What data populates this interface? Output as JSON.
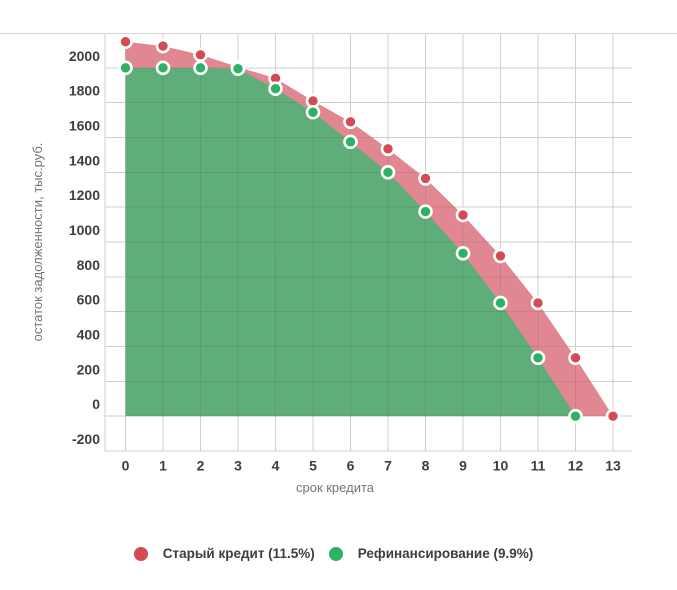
{
  "chart_data": {
    "type": "area",
    "title": "",
    "xlabel": "срок кредита",
    "ylabel": "остаток задолженности, тыс.руб.",
    "x": [
      0,
      1,
      2,
      3,
      4,
      5,
      6,
      7,
      8,
      9,
      10,
      11,
      12,
      13
    ],
    "series": [
      {
        "name": "Старый кредит (11.5%)",
        "values": [
          2150,
          2125,
          2075,
          2005,
          1940,
          1810,
          1690,
          1535,
          1365,
          1155,
          920,
          650,
          335,
          0
        ],
        "point_color": "#d24b55",
        "area_color": "#e18791"
      },
      {
        "name": "Рефинансирование (9.9%)",
        "values": [
          2000,
          2000,
          2000,
          1995,
          1880,
          1745,
          1575,
          1400,
          1175,
          935,
          650,
          335,
          0
        ],
        "point_color": "#2cb166",
        "area_color": "#5fad78"
      }
    ],
    "ylim": [
      -200,
      2200
    ],
    "y_tick_labels": [
      -200,
      0,
      200,
      400,
      600,
      800,
      1000,
      1200,
      1400,
      1600,
      1800,
      2000
    ],
    "x_tick_labels": [
      0,
      1,
      2,
      3,
      4,
      5,
      6,
      7,
      8,
      9,
      10,
      11,
      12,
      13
    ],
    "grid": true,
    "legend_position": "bottom",
    "baseline": 0
  },
  "colors": {
    "gridline": "#cfcfcf",
    "divider": "#d4d4d4",
    "tick_label": "#3f3f3f",
    "axis_title": "#757575",
    "legend_text": "#3d3d3d",
    "background": "#ffffff"
  }
}
